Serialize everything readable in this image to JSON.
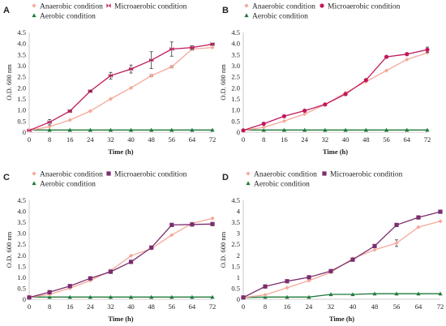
{
  "figure": {
    "colors": {
      "anaerobic": "#f4a99a",
      "microaerobic": "#c2185b",
      "microaerobic_alt": "#7b2d6e",
      "aerobic": "#1f7a3a",
      "errorbar": "#222222",
      "axis": "#bdbdbd"
    }
  },
  "chart_data": [
    {
      "panel": "A",
      "type": "line",
      "xlabel": "Time (h)",
      "ylabel": "O.D. 600 nm",
      "x": [
        0,
        8,
        16,
        24,
        32,
        40,
        48,
        56,
        64,
        72
      ],
      "xlim": [
        0,
        72
      ],
      "ylim": [
        0,
        4.5
      ],
      "yticks": [
        "0",
        "0.5",
        "1.0",
        "1.5",
        "2.0",
        "2.5",
        "3.0",
        "3.5",
        "4.0",
        "4.5"
      ],
      "legend": "top",
      "series": [
        {
          "name": "Anaerobic condition",
          "key": "anaerobic",
          "marker": "diamond",
          "values": [
            0.08,
            0.25,
            0.55,
            0.95,
            1.5,
            2.0,
            2.55,
            2.95,
            3.75,
            3.82
          ],
          "errors": [
            0,
            0,
            0,
            0,
            0,
            0,
            0.05,
            0.05,
            0.05,
            0
          ]
        },
        {
          "name": "Microaerobic condition",
          "key": "microaerobic",
          "marker": "bowtie",
          "values": [
            0.08,
            0.45,
            0.95,
            1.85,
            2.55,
            2.85,
            3.25,
            3.75,
            3.82,
            3.97
          ],
          "errors": [
            0,
            0.12,
            0.05,
            0.05,
            0.15,
            0.18,
            0.38,
            0.32,
            0.08,
            0.05
          ]
        },
        {
          "name": "Aerobic condition",
          "key": "aerobic",
          "marker": "triangle",
          "values": [
            0.1,
            0.1,
            0.1,
            0.1,
            0.1,
            0.1,
            0.1,
            0.1,
            0.1,
            0.1
          ],
          "errors": [
            0,
            0,
            0,
            0,
            0,
            0,
            0,
            0,
            0,
            0
          ]
        }
      ]
    },
    {
      "panel": "B",
      "type": "line",
      "xlabel": "Time (h)",
      "ylabel": "O.D. 600 nm",
      "x": [
        0,
        8,
        16,
        24,
        32,
        40,
        48,
        56,
        64,
        72
      ],
      "xlim": [
        0,
        72
      ],
      "ylim": [
        0,
        4.5
      ],
      "yticks": [
        "0",
        "0.5",
        "1.0",
        "1.5",
        "2.0",
        "2.5",
        "3.0",
        "3.5",
        "4.0",
        "4.5"
      ],
      "legend": "top",
      "series": [
        {
          "name": "Anaerobic condition",
          "key": "anaerobic",
          "marker": "diamond",
          "values": [
            0.08,
            0.22,
            0.5,
            0.82,
            1.25,
            1.78,
            2.28,
            2.78,
            3.28,
            3.58
          ],
          "errors": [
            0,
            0,
            0,
            0,
            0,
            0,
            0,
            0,
            0,
            0
          ]
        },
        {
          "name": "Microaerobic condition",
          "key": "microaerobic",
          "marker": "circle",
          "values": [
            0.08,
            0.38,
            0.72,
            0.97,
            1.25,
            1.72,
            2.35,
            3.4,
            3.52,
            3.72
          ],
          "errors": [
            0,
            0,
            0,
            0,
            0,
            0.05,
            0.05,
            0.05,
            0.05,
            0.12
          ]
        },
        {
          "name": "Aerobic condition",
          "key": "aerobic",
          "marker": "triangle",
          "values": [
            0.1,
            0.1,
            0.1,
            0.1,
            0.1,
            0.1,
            0.1,
            0.1,
            0.1,
            0.1
          ],
          "errors": [
            0,
            0,
            0,
            0,
            0,
            0,
            0,
            0,
            0,
            0
          ]
        }
      ]
    },
    {
      "panel": "C",
      "type": "line",
      "xlabel": "Time (h)",
      "ylabel": "O.D. 600 nm",
      "x": [
        0,
        8,
        16,
        24,
        32,
        40,
        48,
        56,
        64,
        72
      ],
      "xlim": [
        0,
        72
      ],
      "ylim": [
        0,
        4.5
      ],
      "yticks": [
        "0",
        "0.5",
        "1.0",
        "1.5",
        "2.0",
        "2.5",
        "3.0",
        "3.5",
        "4.0",
        "4.5"
      ],
      "legend": "top",
      "series": [
        {
          "name": "Anaerobic condition",
          "key": "anaerobic",
          "marker": "diamond",
          "values": [
            0.08,
            0.22,
            0.5,
            0.85,
            1.3,
            1.98,
            2.3,
            2.92,
            3.45,
            3.68
          ],
          "errors": [
            0,
            0,
            0,
            0,
            0.05,
            0,
            0,
            0,
            0,
            0
          ]
        },
        {
          "name": "Microaerobic condition",
          "key": "microaerobic_alt",
          "marker": "square",
          "values": [
            0.08,
            0.32,
            0.6,
            0.95,
            1.25,
            1.7,
            2.35,
            3.38,
            3.4,
            3.42
          ],
          "errors": [
            0,
            0,
            0,
            0,
            0,
            0,
            0,
            0,
            0,
            0
          ]
        },
        {
          "name": "Aerobic condition",
          "key": "aerobic",
          "marker": "triangle",
          "values": [
            0.1,
            0.1,
            0.1,
            0.1,
            0.1,
            0.1,
            0.1,
            0.1,
            0.1,
            0.1
          ],
          "errors": [
            0,
            0,
            0,
            0,
            0,
            0,
            0,
            0,
            0,
            0
          ]
        }
      ]
    },
    {
      "panel": "D",
      "type": "line",
      "xlabel": "Time (h)",
      "ylabel": "O.D. 600 nm",
      "x": [
        0,
        8,
        16,
        24,
        32,
        40,
        48,
        56,
        64,
        72
      ],
      "xlim": [
        0,
        72
      ],
      "ylim": [
        0,
        4.5
      ],
      "yticks": [
        "0",
        "0.5",
        "1",
        "1.5",
        "2",
        "2.5",
        "3",
        "3.5",
        "4",
        "4.5"
      ],
      "legend": "top",
      "series": [
        {
          "name": "Anaerobic condition",
          "key": "anaerobic",
          "marker": "diamond",
          "values": [
            0.08,
            0.2,
            0.52,
            0.85,
            1.22,
            1.85,
            2.25,
            2.55,
            3.28,
            3.55
          ],
          "errors": [
            0,
            0,
            0,
            0,
            0,
            0,
            0,
            0.15,
            0,
            0
          ]
        },
        {
          "name": "Microaerobic condition",
          "key": "microaerobic_alt",
          "marker": "square",
          "values": [
            0.08,
            0.58,
            0.82,
            1.0,
            1.28,
            1.8,
            2.42,
            3.38,
            3.72,
            3.98
          ],
          "errors": [
            0,
            0,
            0,
            0,
            0,
            0,
            0,
            0,
            0,
            0
          ]
        },
        {
          "name": "Aerobic condition",
          "key": "aerobic",
          "marker": "triangle",
          "values": [
            0.08,
            0.1,
            0.1,
            0.1,
            0.22,
            0.22,
            0.25,
            0.25,
            0.25,
            0.25
          ],
          "errors": [
            0,
            0,
            0,
            0,
            0,
            0,
            0,
            0,
            0,
            0
          ]
        }
      ]
    }
  ]
}
